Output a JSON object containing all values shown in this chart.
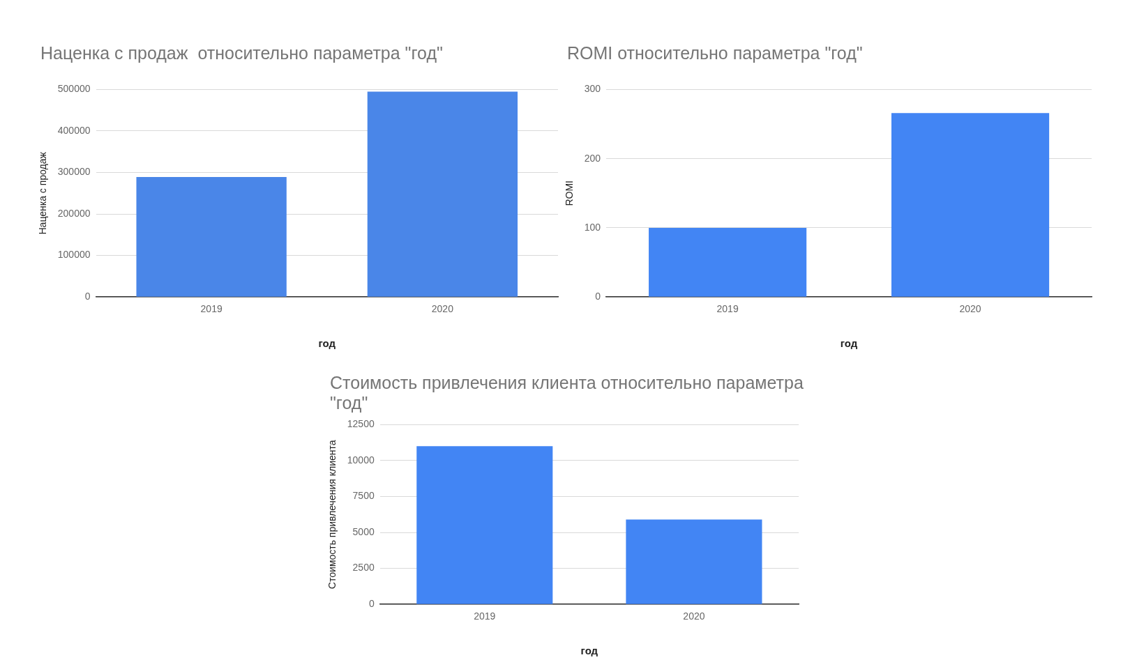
{
  "chart_data": [
    {
      "type": "bar",
      "title": "Наценка с продаж  относительно параметра \"год\"",
      "xlabel": "год",
      "ylabel": "Наценка с продаж",
      "categories": [
        "2019",
        "2020"
      ],
      "values": [
        289000,
        495000
      ],
      "color": "#4a86e8",
      "ylim": [
        0,
        500000
      ],
      "yticks": [
        0,
        100000,
        200000,
        300000,
        400000,
        500000
      ],
      "grid": "y"
    },
    {
      "type": "bar",
      "title": "ROMI относительно параметра \"год\"",
      "xlabel": "год",
      "ylabel": "ROMI",
      "categories": [
        "2019",
        "2020"
      ],
      "values": [
        100,
        266
      ],
      "color": "#4285f4",
      "ylim": [
        0,
        300
      ],
      "yticks": [
        0,
        100,
        200,
        300
      ],
      "grid": "y"
    },
    {
      "type": "bar",
      "title": "Стоимость привлечения клиента относительно параметра \"год\"",
      "xlabel": "год",
      "ylabel": "Стоимость привлечения клиента",
      "categories": [
        "2019",
        "2020"
      ],
      "values": [
        11000,
        5900
      ],
      "color": "#4285f4",
      "ylim": [
        0,
        12500
      ],
      "yticks": [
        0,
        2500,
        5000,
        7500,
        10000,
        12500
      ],
      "grid": "y"
    }
  ]
}
